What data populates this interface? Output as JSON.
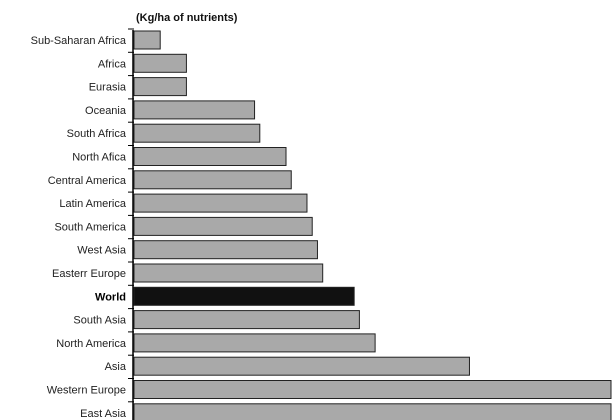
{
  "chart_data": {
    "type": "bar",
    "orientation": "horizontal",
    "title": "(Kg/ha of nutrients)",
    "categories": [
      "Sub-Saharan Africa",
      "Africa",
      "Eurasia",
      "Oceania",
      "South Africa",
      "North Afica",
      "Central America",
      "Latin America",
      "South America",
      "West Asia",
      "Easterr Europe",
      "World",
      "South Asia",
      "North America",
      "Asia",
      "Western Europe",
      "East Asia"
    ],
    "values": [
      10,
      20,
      20,
      46,
      48,
      58,
      60,
      66,
      68,
      70,
      72,
      84,
      86,
      92,
      128,
      182,
      182
    ],
    "highlight": "World",
    "xlim": [
      0,
      182
    ],
    "grid": false,
    "legend": "none"
  },
  "colors": {
    "bar_fill": "#a9a9a9",
    "bar_stroke": "#222222",
    "highlight_fill": "#111111",
    "axis": "#000000"
  }
}
